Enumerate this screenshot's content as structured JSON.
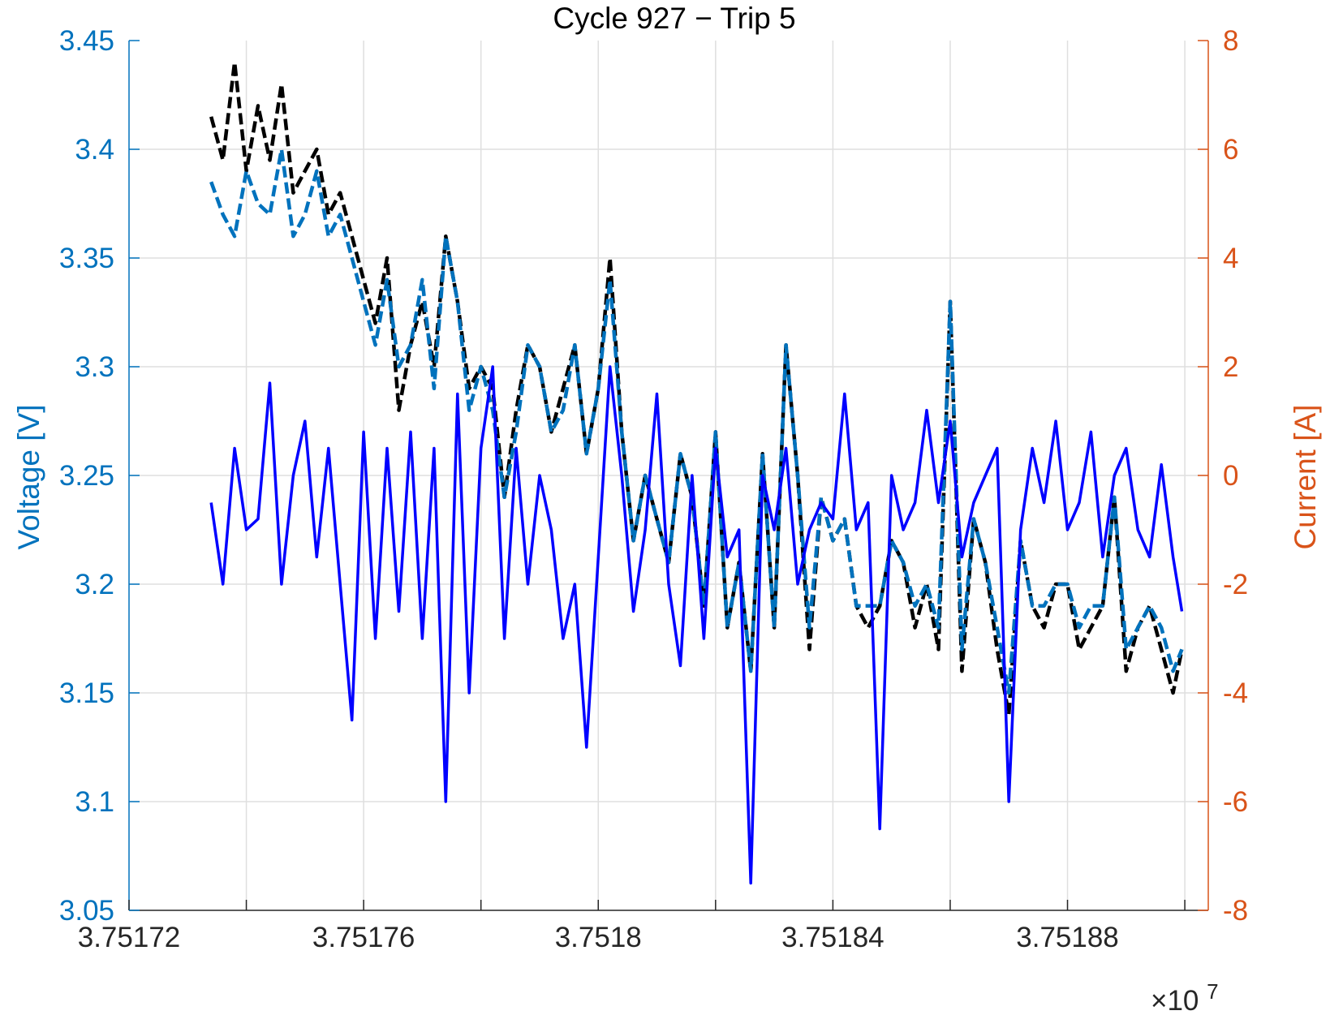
{
  "chart_data": {
    "type": "line",
    "title": "Cycle 927 − Trip 5",
    "xlabel": "",
    "x_exponent_base": "×10",
    "x_exponent_power": "7",
    "xlim": [
      3.75172,
      3.751904
    ],
    "x_ticks": [
      3.75172,
      3.75174,
      3.75176,
      3.75178,
      3.7518,
      3.75182,
      3.75184,
      3.75186,
      3.75188,
      3.7519
    ],
    "x_tick_labels": [
      "3.75172",
      "",
      "3.75176",
      "",
      "3.7518",
      "",
      "3.75184",
      "",
      "3.75188",
      ""
    ],
    "y_left": {
      "label": "Voltage [V]",
      "lim": [
        3.05,
        3.45
      ],
      "ticks": [
        3.05,
        3.1,
        3.15,
        3.2,
        3.25,
        3.3,
        3.35,
        3.4,
        3.45
      ],
      "tick_labels": [
        "3.05",
        "3.1",
        "3.15",
        "3.2",
        "3.25",
        "3.3",
        "3.35",
        "3.4",
        "3.45"
      ],
      "color": "#0072bd"
    },
    "y_right": {
      "label": "Current [A]",
      "lim": [
        -8,
        8
      ],
      "ticks": [
        -8,
        -6,
        -4,
        -2,
        0,
        2,
        4,
        6,
        8
      ],
      "tick_labels": [
        "-8",
        "-6",
        "-4",
        "-2",
        "0",
        "2",
        "4",
        "6",
        "8"
      ],
      "color": "#d95319"
    },
    "grid": true,
    "series": [
      {
        "axis": "left",
        "color": "#000000",
        "style": "dashed",
        "x": [
          3.751734,
          3.751736,
          3.751738,
          3.75174,
          3.751742,
          3.751744,
          3.751746,
          3.751748,
          3.75175,
          3.751752,
          3.751754,
          3.751756,
          3.751758,
          3.75176,
          3.751762,
          3.751764,
          3.751766,
          3.751768,
          3.75177,
          3.751772,
          3.751774,
          3.751776,
          3.751778,
          3.75178,
          3.751782,
          3.751784,
          3.751786,
          3.751788,
          3.75179,
          3.751792,
          3.751794,
          3.751796,
          3.751798,
          3.7518,
          3.751802,
          3.751804,
          3.751806,
          3.751808,
          3.75181,
          3.751812,
          3.751814,
          3.751816,
          3.751818,
          3.75182,
          3.751822,
          3.751824,
          3.751826,
          3.751828,
          3.75183,
          3.751832,
          3.751834,
          3.751836,
          3.751838,
          3.75184,
          3.751842,
          3.751844,
          3.751846,
          3.751848,
          3.75185,
          3.751852,
          3.751854,
          3.751856,
          3.751858,
          3.75186,
          3.751862,
          3.751864,
          3.751866,
          3.751868,
          3.75187,
          3.751872,
          3.751874,
          3.751876,
          3.751878,
          3.75188,
          3.751882,
          3.751884,
          3.751886,
          3.751888,
          3.75189,
          3.751892,
          3.751894,
          3.751896,
          3.751898,
          3.7518995
        ],
        "y": [
          3.415,
          3.395,
          3.44,
          3.39,
          3.42,
          3.395,
          3.43,
          3.38,
          3.39,
          3.4,
          3.37,
          3.38,
          3.36,
          3.34,
          3.32,
          3.35,
          3.28,
          3.31,
          3.33,
          3.3,
          3.36,
          3.33,
          3.29,
          3.3,
          3.29,
          3.24,
          3.28,
          3.31,
          3.3,
          3.27,
          3.29,
          3.31,
          3.26,
          3.29,
          3.35,
          3.27,
          3.22,
          3.25,
          3.23,
          3.21,
          3.26,
          3.24,
          3.19,
          3.27,
          3.18,
          3.21,
          3.16,
          3.26,
          3.18,
          3.31,
          3.25,
          3.17,
          3.24,
          3.22,
          3.23,
          3.19,
          3.18,
          3.19,
          3.22,
          3.21,
          3.18,
          3.2,
          3.17,
          3.33,
          3.16,
          3.23,
          3.21,
          3.17,
          3.14,
          3.22,
          3.19,
          3.18,
          3.2,
          3.2,
          3.17,
          3.18,
          3.19,
          3.24,
          3.16,
          3.18,
          3.19,
          3.17,
          3.15,
          3.17
        ]
      },
      {
        "axis": "left",
        "color": "#0072bd",
        "style": "dashed",
        "x": [
          3.751734,
          3.751736,
          3.751738,
          3.75174,
          3.751742,
          3.751744,
          3.751746,
          3.751748,
          3.75175,
          3.751752,
          3.751754,
          3.751756,
          3.751758,
          3.75176,
          3.751762,
          3.751764,
          3.751766,
          3.751768,
          3.75177,
          3.751772,
          3.751774,
          3.751776,
          3.751778,
          3.75178,
          3.751782,
          3.751784,
          3.751786,
          3.751788,
          3.75179,
          3.751792,
          3.751794,
          3.751796,
          3.751798,
          3.7518,
          3.751802,
          3.751804,
          3.751806,
          3.751808,
          3.75181,
          3.751812,
          3.751814,
          3.751816,
          3.751818,
          3.75182,
          3.751822,
          3.751824,
          3.751826,
          3.751828,
          3.75183,
          3.751832,
          3.751834,
          3.751836,
          3.751838,
          3.75184,
          3.751842,
          3.751844,
          3.751846,
          3.751848,
          3.75185,
          3.751852,
          3.751854,
          3.751856,
          3.751858,
          3.75186,
          3.751862,
          3.751864,
          3.751866,
          3.751868,
          3.75187,
          3.751872,
          3.751874,
          3.751876,
          3.751878,
          3.75188,
          3.751882,
          3.751884,
          3.751886,
          3.751888,
          3.75189,
          3.751892,
          3.751894,
          3.751896,
          3.751898,
          3.7518995
        ],
        "y": [
          3.385,
          3.37,
          3.36,
          3.39,
          3.375,
          3.37,
          3.4,
          3.36,
          3.37,
          3.39,
          3.36,
          3.37,
          3.35,
          3.33,
          3.31,
          3.34,
          3.3,
          3.31,
          3.34,
          3.29,
          3.36,
          3.33,
          3.28,
          3.3,
          3.28,
          3.24,
          3.27,
          3.31,
          3.3,
          3.27,
          3.28,
          3.31,
          3.26,
          3.29,
          3.34,
          3.27,
          3.22,
          3.25,
          3.23,
          3.21,
          3.26,
          3.24,
          3.19,
          3.27,
          3.18,
          3.21,
          3.16,
          3.26,
          3.18,
          3.31,
          3.25,
          3.18,
          3.24,
          3.22,
          3.23,
          3.19,
          3.19,
          3.19,
          3.22,
          3.21,
          3.19,
          3.2,
          3.18,
          3.33,
          3.17,
          3.23,
          3.21,
          3.18,
          3.15,
          3.22,
          3.19,
          3.19,
          3.2,
          3.2,
          3.18,
          3.19,
          3.19,
          3.24,
          3.17,
          3.18,
          3.19,
          3.18,
          3.16,
          3.17
        ]
      },
      {
        "axis": "right",
        "color": "#0000ff",
        "style": "solid",
        "x": [
          3.751734,
          3.751736,
          3.751738,
          3.75174,
          3.751742,
          3.751744,
          3.751746,
          3.751748,
          3.75175,
          3.751752,
          3.751754,
          3.751756,
          3.751758,
          3.75176,
          3.751762,
          3.751764,
          3.751766,
          3.751768,
          3.75177,
          3.751772,
          3.751774,
          3.751776,
          3.751778,
          3.75178,
          3.751782,
          3.751784,
          3.751786,
          3.751788,
          3.75179,
          3.751792,
          3.751794,
          3.751796,
          3.751798,
          3.7518,
          3.751802,
          3.751804,
          3.751806,
          3.751808,
          3.75181,
          3.751812,
          3.751814,
          3.751816,
          3.751818,
          3.75182,
          3.751822,
          3.751824,
          3.751826,
          3.751828,
          3.75183,
          3.751832,
          3.751834,
          3.751836,
          3.751838,
          3.75184,
          3.751842,
          3.751844,
          3.751846,
          3.751848,
          3.75185,
          3.751852,
          3.751854,
          3.751856,
          3.751858,
          3.75186,
          3.751862,
          3.751864,
          3.751866,
          3.751868,
          3.75187,
          3.751872,
          3.751874,
          3.751876,
          3.751878,
          3.75188,
          3.751882,
          3.751884,
          3.751886,
          3.751888,
          3.75189,
          3.751892,
          3.751894,
          3.751896,
          3.751898,
          3.7518995
        ],
        "y": [
          -0.5,
          -2.0,
          0.5,
          -1.0,
          -0.8,
          1.7,
          -2.0,
          0.0,
          1.0,
          -1.5,
          0.5,
          -2.0,
          -4.5,
          0.8,
          -3.0,
          0.5,
          -2.5,
          0.8,
          -3.0,
          0.5,
          -6.0,
          1.5,
          -4.0,
          0.5,
          2.0,
          -3.0,
          0.5,
          -2.0,
          0.0,
          -1.0,
          -3.0,
          -2.0,
          -5.0,
          -1.5,
          2.0,
          0.0,
          -2.5,
          -1.0,
          1.5,
          -2.0,
          -3.5,
          0.0,
          -3.0,
          0.5,
          -1.5,
          -1.0,
          -7.5,
          0.0,
          -1.0,
          0.5,
          -2.0,
          -1.0,
          -0.5,
          -0.8,
          1.5,
          -1.0,
          -0.5,
          -6.5,
          0.0,
          -1.0,
          -0.5,
          1.2,
          -0.5,
          1.0,
          -1.5,
          -0.5,
          0.0,
          0.5,
          -6.0,
          -1.0,
          0.5,
          -0.5,
          1.0,
          -1.0,
          -0.5,
          0.8,
          -1.5,
          0.0,
          0.5,
          -1.0,
          -1.5,
          0.2,
          -1.5,
          -2.5
        ]
      }
    ]
  }
}
